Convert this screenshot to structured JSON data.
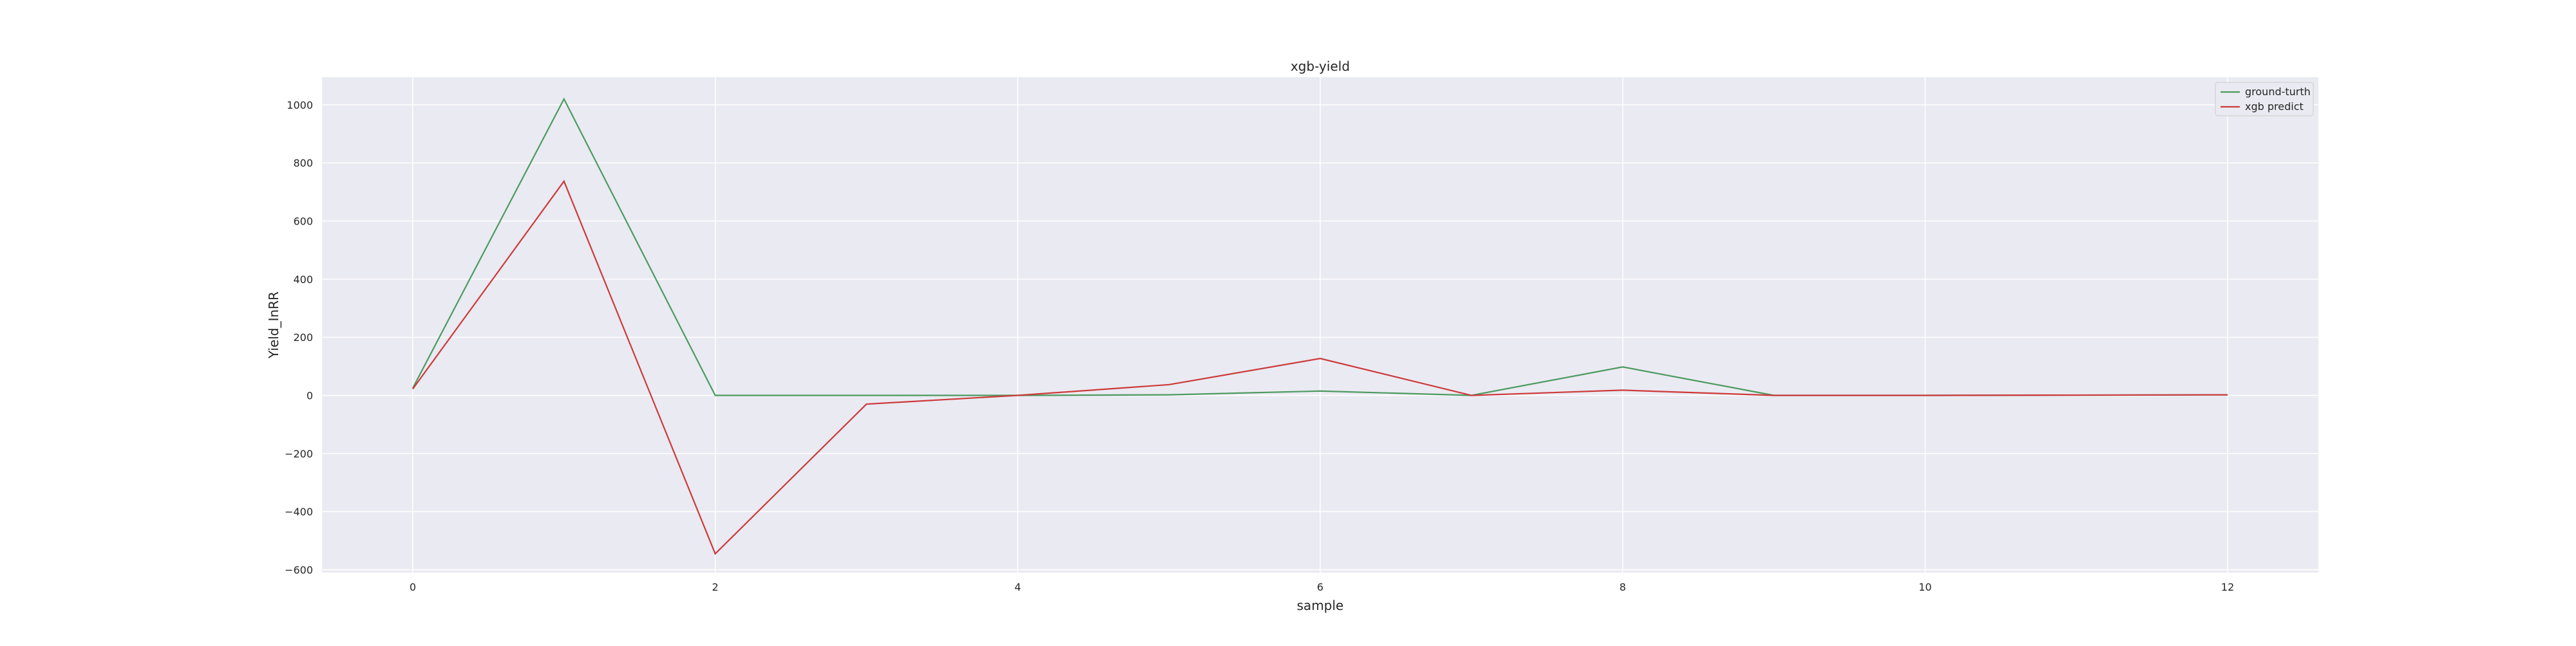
{
  "chart_data": {
    "type": "line",
    "title": "xgb-yield",
    "xlabel": "sample",
    "ylabel": "Yield_InRR",
    "x": [
      0,
      1,
      2,
      3,
      4,
      5,
      6,
      7,
      8,
      9,
      10,
      11,
      12
    ],
    "xlim": [
      -0.6,
      12.6
    ],
    "ylim": [
      -610,
      1095
    ],
    "xticks": [
      0,
      2,
      4,
      6,
      8,
      10,
      12
    ],
    "yticks": [
      -600,
      -400,
      -200,
      0,
      200,
      400,
      600,
      800,
      1000
    ],
    "grid": true,
    "legend_position": "top-right",
    "series": [
      {
        "name": "ground-turth",
        "color": "#4c9a5f",
        "values": [
          25,
          1020,
          0,
          0,
          0,
          2,
          15,
          0,
          98,
          0,
          0,
          1,
          2
        ]
      },
      {
        "name": "xgb predict",
        "color": "#cc3a3a",
        "values": [
          22,
          737,
          -545,
          -30,
          0,
          37,
          127,
          0,
          18,
          0,
          0,
          1,
          2
        ]
      }
    ],
    "background_color": "#eaeaf2",
    "grid_color": "#ffffff"
  }
}
